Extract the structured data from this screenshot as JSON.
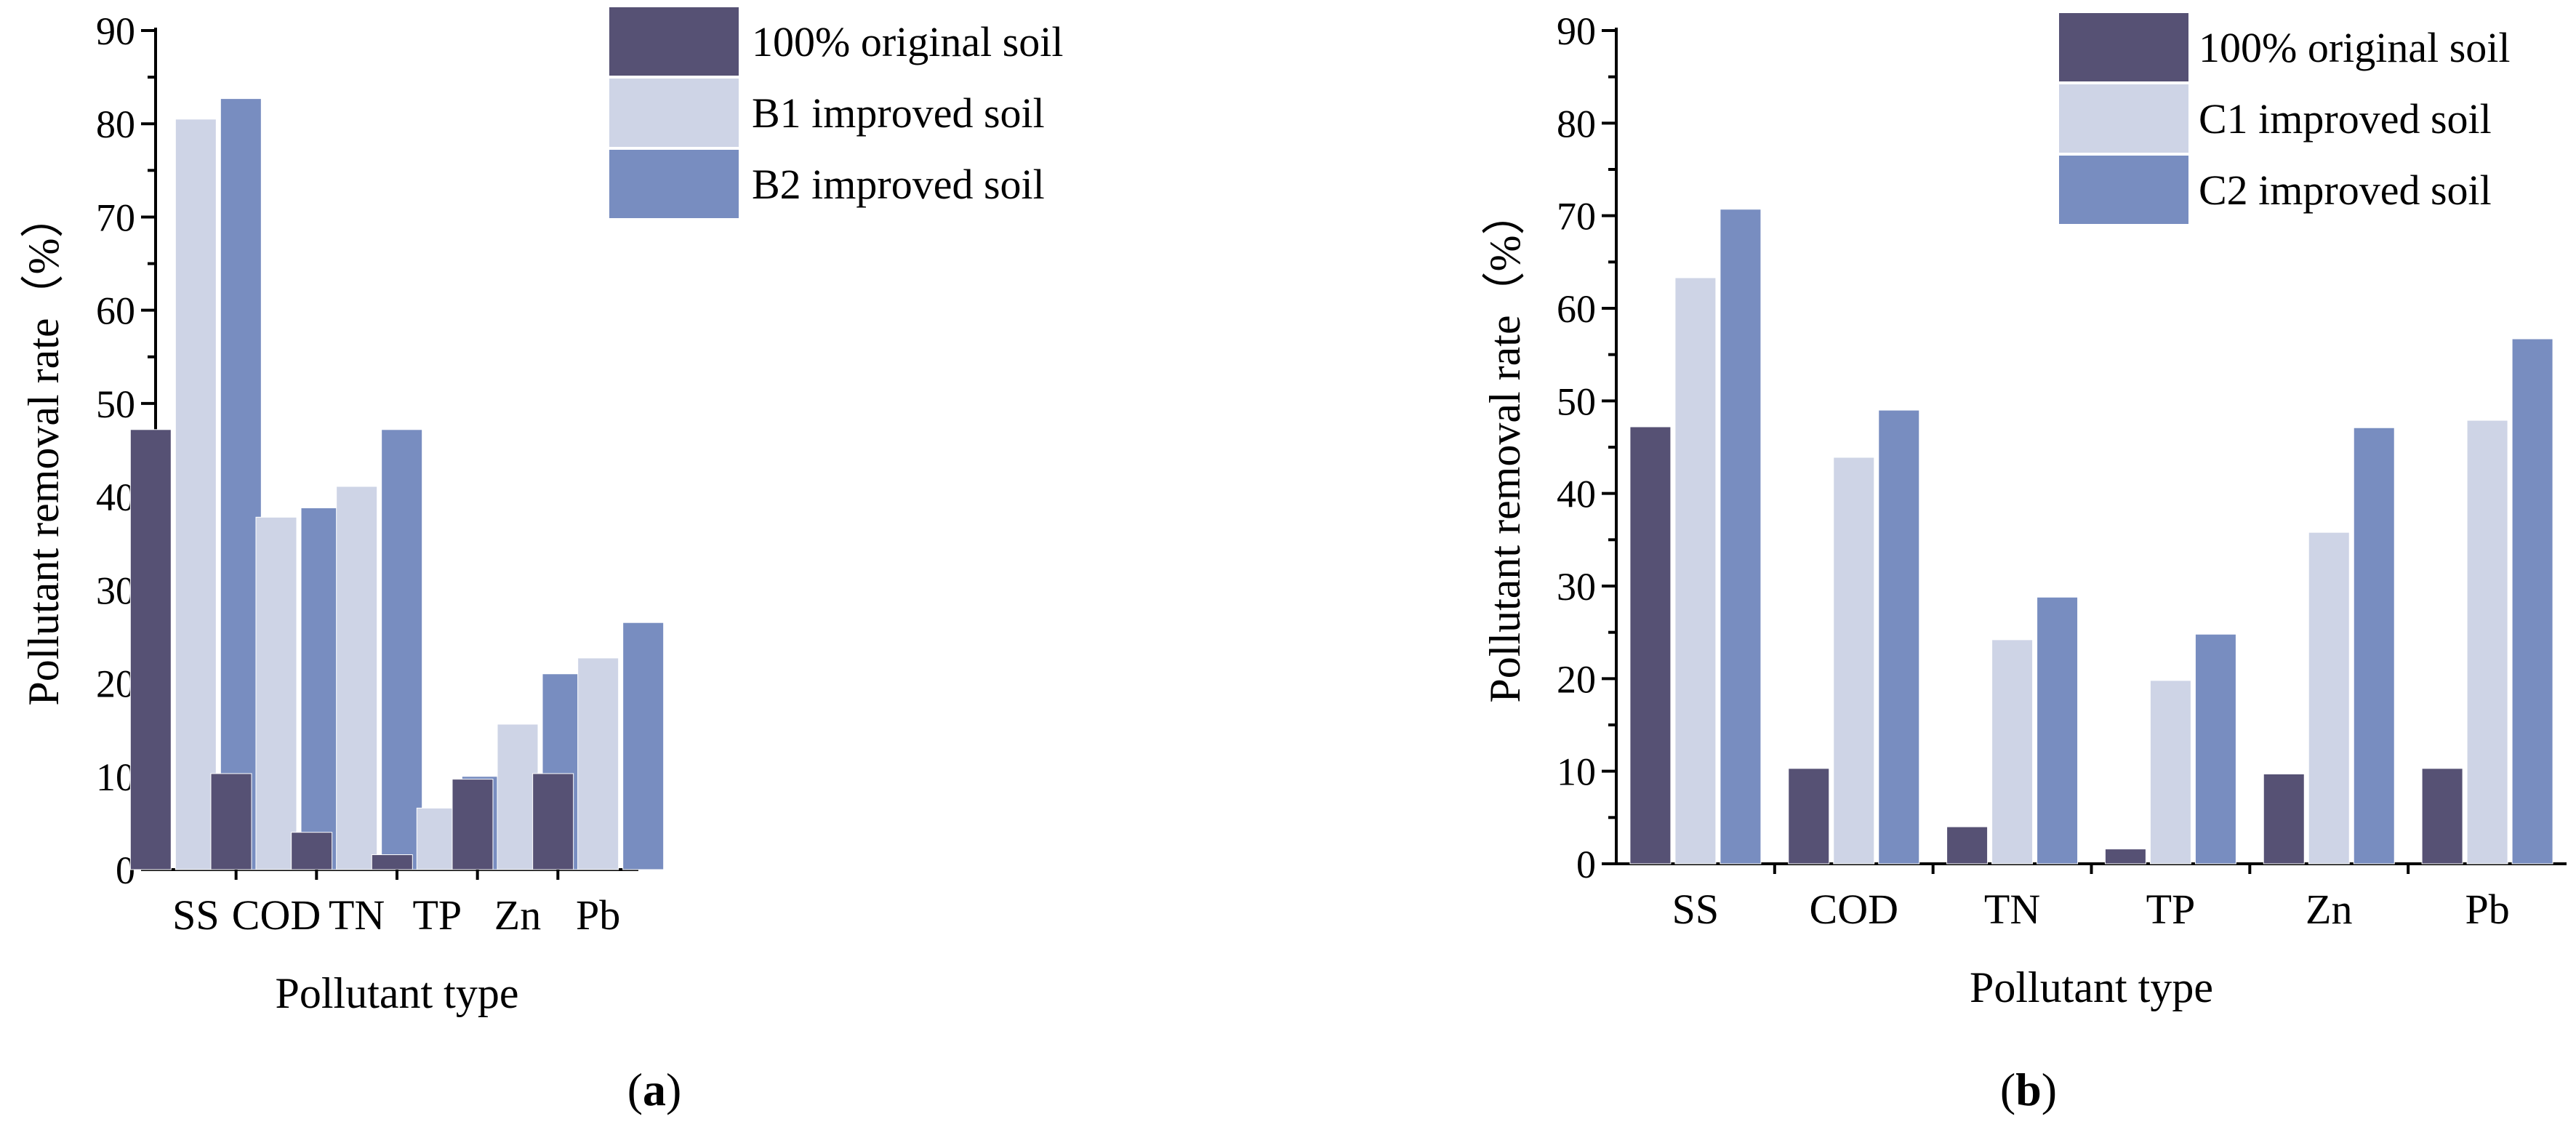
{
  "chart_data": [
    {
      "type": "bar",
      "panel_label": "a",
      "xlabel": "Pollutant type",
      "ylabel": "Pollutant removal rate（%）",
      "ylim": [
        0,
        90
      ],
      "yticks": [
        0,
        10,
        20,
        30,
        40,
        50,
        60,
        70,
        80,
        90
      ],
      "categories": [
        "SS",
        "COD",
        "TN",
        "TP",
        "Zn",
        "Pb"
      ],
      "series": [
        {
          "name": "100% original soil",
          "color": "#565174",
          "values": [
            47.2,
            10.3,
            4.0,
            1.6,
            9.7,
            10.3
          ]
        },
        {
          "name": "B1 improved soil",
          "color": "#CED4E6",
          "values": [
            80.5,
            37.8,
            41.1,
            6.6,
            15.6,
            22.7
          ]
        },
        {
          "name": "B2 improved soil",
          "color": "#788DC0",
          "values": [
            82.7,
            38.8,
            47.2,
            10.0,
            21.0,
            26.5
          ]
        }
      ]
    },
    {
      "type": "bar",
      "panel_label": "b",
      "xlabel": "Pollutant type",
      "ylabel": "Pollutant removal rate（%）",
      "ylim": [
        0,
        90
      ],
      "yticks": [
        0,
        10,
        20,
        30,
        40,
        50,
        60,
        70,
        80,
        90
      ],
      "categories": [
        "SS",
        "COD",
        "TN",
        "TP",
        "Zn",
        "Pb"
      ],
      "series": [
        {
          "name": "100% original soil",
          "color": "#565174",
          "values": [
            47.2,
            10.3,
            4.0,
            1.6,
            9.7,
            10.3
          ]
        },
        {
          "name": "C1 improved soil",
          "color": "#CED4E6",
          "values": [
            63.3,
            43.9,
            24.2,
            19.8,
            35.8,
            47.9
          ]
        },
        {
          "name": "C2 improved soil",
          "color": "#788DC0",
          "values": [
            70.7,
            49.0,
            28.8,
            24.8,
            47.1,
            56.7
          ]
        }
      ]
    }
  ]
}
